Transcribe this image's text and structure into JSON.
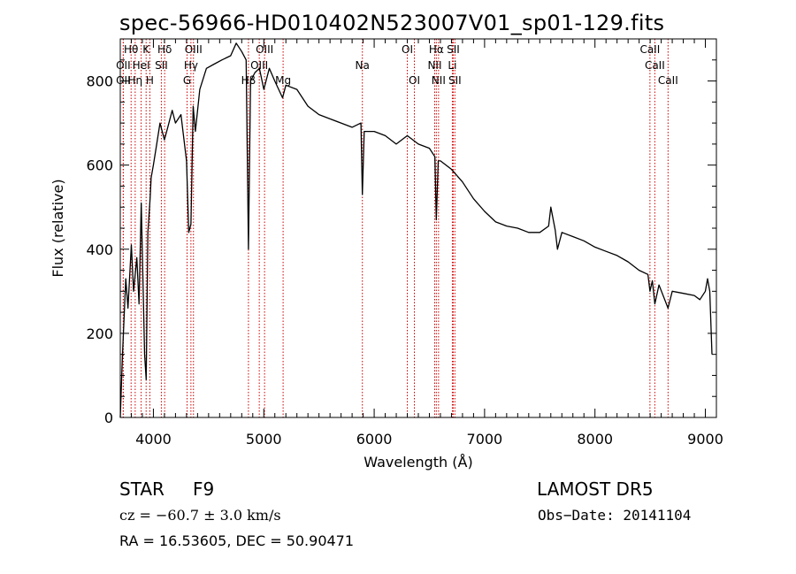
{
  "chart_data": {
    "type": "line",
    "title": "spec-56966-HD010402N523007V01_sp01-129.fits",
    "xlabel": "Wavelength (Å)",
    "ylabel": "Flux (relative)",
    "xlim": [
      3700,
      9100
    ],
    "ylim": [
      0,
      900
    ],
    "xticks": [
      4000,
      5000,
      6000,
      7000,
      8000,
      9000
    ],
    "yticks": [
      0,
      200,
      400,
      600,
      800
    ],
    "grid": false,
    "series": [
      {
        "color": "#000000",
        "x": [
          3700,
          3720,
          3750,
          3770,
          3800,
          3820,
          3850,
          3870,
          3890,
          3920,
          3935,
          3950,
          3970,
          3980,
          4000,
          4030,
          4060,
          4100,
          4130,
          4170,
          4200,
          4250,
          4300,
          4320,
          4340,
          4360,
          4380,
          4420,
          4480,
          4550,
          4620,
          4700,
          4750,
          4800,
          4840,
          4861,
          4880,
          4920,
          4960,
          5000,
          5050,
          5100,
          5170,
          5200,
          5300,
          5400,
          5500,
          5600,
          5700,
          5800,
          5880,
          5893,
          5910,
          6000,
          6100,
          6200,
          6300,
          6400,
          6500,
          6550,
          6563,
          6580,
          6600,
          6700,
          6800,
          6900,
          7000,
          7100,
          7200,
          7300,
          7400,
          7500,
          7580,
          7600,
          7640,
          7660,
          7700,
          7800,
          7900,
          8000,
          8100,
          8200,
          8300,
          8400,
          8480,
          8498,
          8520,
          8542,
          8580,
          8662,
          8700,
          8800,
          8900,
          8950,
          9000,
          9020,
          9040,
          9060
        ],
        "y": [
          0,
          150,
          330,
          260,
          410,
          300,
          380,
          270,
          510,
          150,
          90,
          440,
          520,
          570,
          600,
          650,
          700,
          660,
          690,
          730,
          700,
          720,
          610,
          440,
          460,
          740,
          680,
          780,
          830,
          840,
          850,
          860,
          890,
          870,
          850,
          400,
          800,
          820,
          830,
          780,
          830,
          800,
          760,
          790,
          780,
          740,
          720,
          710,
          700,
          690,
          700,
          530,
          680,
          680,
          670,
          650,
          670,
          650,
          640,
          620,
          470,
          610,
          610,
          590,
          560,
          520,
          490,
          465,
          455,
          450,
          440,
          440,
          455,
          500,
          445,
          400,
          440,
          430,
          420,
          405,
          395,
          385,
          370,
          350,
          340,
          300,
          325,
          270,
          315,
          260,
          300,
          295,
          290,
          280,
          300,
          330,
          300,
          150
        ]
      }
    ],
    "line_labels": [
      {
        "name": "OII",
        "wavelength": 3727,
        "row": 2
      },
      {
        "name": "OII",
        "wavelength": 3727,
        "row": 3
      },
      {
        "name": "Hθ",
        "wavelength": 3798,
        "row": 1
      },
      {
        "name": "Hη",
        "wavelength": 3835,
        "row": 3
      },
      {
        "name": "HeI",
        "wavelength": 3889,
        "row": 2
      },
      {
        "name": "K",
        "wavelength": 3934,
        "row": 1
      },
      {
        "name": "H",
        "wavelength": 3968,
        "row": 3
      },
      {
        "name": "SII",
        "wavelength": 4072,
        "row": 2
      },
      {
        "name": "Hδ",
        "wavelength": 4102,
        "row": 1
      },
      {
        "name": "G",
        "wavelength": 4305,
        "row": 3
      },
      {
        "name": "Hγ",
        "wavelength": 4340,
        "row": 2
      },
      {
        "name": "OIII",
        "wavelength": 4363,
        "row": 1
      },
      {
        "name": "Hβ",
        "wavelength": 4861,
        "row": 3
      },
      {
        "name": "OIII",
        "wavelength": 4959,
        "row": 2
      },
      {
        "name": "OIII",
        "wavelength": 5007,
        "row": 1
      },
      {
        "name": "Mg",
        "wavelength": 5175,
        "row": 3
      },
      {
        "name": "Na",
        "wavelength": 5893,
        "row": 2
      },
      {
        "name": "OI",
        "wavelength": 6300,
        "row": 1
      },
      {
        "name": "OI",
        "wavelength": 6364,
        "row": 3
      },
      {
        "name": "NII",
        "wavelength": 6548,
        "row": 2
      },
      {
        "name": "NII",
        "wavelength": 6583,
        "row": 3
      },
      {
        "name": "Hα",
        "wavelength": 6563,
        "row": 1
      },
      {
        "name": "SII",
        "wavelength": 6716,
        "row": 1
      },
      {
        "name": "Li",
        "wavelength": 6708,
        "row": 2
      },
      {
        "name": "SII",
        "wavelength": 6731,
        "row": 3
      },
      {
        "name": "CaII",
        "wavelength": 8498,
        "row": 1
      },
      {
        "name": "CaII",
        "wavelength": 8542,
        "row": 2
      },
      {
        "name": "CaII",
        "wavelength": 8662,
        "row": 3
      }
    ]
  },
  "info": {
    "class_label": "STAR",
    "subclass": "F9",
    "survey": "LAMOST  DR5",
    "cz": "cz = −60.7 ± 3.0 km/s",
    "obs_date": "Obs−Date: 20141104",
    "coords": "RA =  16.53605, DEC =  50.90471"
  },
  "colors": {
    "line": "#000000",
    "marker_lines": "#cc0000",
    "background": "#ffffff"
  }
}
